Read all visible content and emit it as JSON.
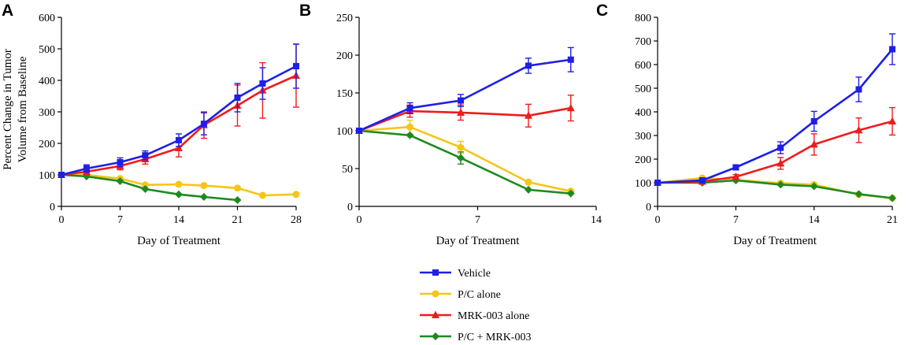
{
  "colors": {
    "vehicle": "#1f1fe6",
    "pc_alone": "#f5c518",
    "mrk_alone": "#ee1c1c",
    "pc_mrk": "#1e8a1e"
  },
  "legend": {
    "items": [
      {
        "key": "vehicle",
        "label": "Vehicle",
        "marker": "square"
      },
      {
        "key": "pc_alone",
        "label": "P/C alone",
        "marker": "circle"
      },
      {
        "key": "mrk_alone",
        "label": "MRK-003 alone",
        "marker": "triangle"
      },
      {
        "key": "pc_mrk",
        "label": "P/C + MRK-003",
        "marker": "diamond"
      }
    ]
  },
  "chart_data": [
    {
      "type": "line",
      "panel": "A",
      "title": "",
      "xlabel": "Day of Treatment",
      "ylabel": "Percent Change in Tumor Volume from Baseline",
      "ylabel_lines": [
        "Percent Change in Tumor",
        "Volume from Baseline"
      ],
      "xlim": [
        0,
        28
      ],
      "ylim": [
        0,
        600
      ],
      "xticks": [
        0,
        7,
        14,
        21,
        28
      ],
      "yticks": [
        0,
        100,
        200,
        300,
        400,
        500,
        600
      ],
      "series": [
        {
          "key": "vehicle",
          "name": "Vehicle",
          "x": [
            0,
            3,
            7,
            10,
            14,
            17,
            21,
            24,
            28
          ],
          "y": [
            100,
            120,
            140,
            162,
            210,
            262,
            345,
            390,
            445
          ],
          "err": [
            0,
            12,
            14,
            14,
            20,
            35,
            45,
            50,
            70
          ]
        },
        {
          "key": "pc_alone",
          "name": "P/C alone",
          "x": [
            0,
            3,
            7,
            10,
            14,
            17,
            21,
            24,
            28
          ],
          "y": [
            100,
            100,
            88,
            68,
            70,
            66,
            58,
            35,
            38
          ],
          "err": [
            0,
            0,
            0,
            0,
            0,
            0,
            0,
            0,
            0
          ]
        },
        {
          "key": "mrk_alone",
          "name": "MRK-003 alone",
          "x": [
            0,
            3,
            7,
            10,
            14,
            17,
            21,
            24,
            28
          ],
          "y": [
            100,
            110,
            128,
            150,
            185,
            258,
            320,
            368,
            415
          ],
          "err": [
            0,
            10,
            12,
            16,
            28,
            42,
            65,
            88,
            100
          ]
        },
        {
          "key": "pc_mrk",
          "name": "P/C + MRK-003",
          "x": [
            0,
            3,
            7,
            10,
            14,
            17,
            21
          ],
          "y": [
            100,
            95,
            80,
            55,
            38,
            30,
            20
          ],
          "err": [
            0,
            0,
            0,
            0,
            0,
            0,
            0
          ]
        }
      ]
    },
    {
      "type": "line",
      "panel": "B",
      "title": "",
      "xlabel": "Day of Treatment",
      "ylabel": "",
      "xlim": [
        0,
        14
      ],
      "ylim": [
        0,
        250
      ],
      "xticks": [
        0,
        7,
        14
      ],
      "yticks": [
        0,
        50,
        100,
        150,
        200,
        250
      ],
      "series": [
        {
          "key": "vehicle",
          "name": "Vehicle",
          "x": [
            0,
            3,
            6,
            10,
            12.5
          ],
          "y": [
            100,
            130,
            140,
            186,
            194
          ],
          "err": [
            0,
            7,
            8,
            10,
            16
          ]
        },
        {
          "key": "pc_alone",
          "name": "P/C alone",
          "x": [
            0,
            3,
            6,
            10,
            12.5
          ],
          "y": [
            100,
            105,
            78,
            32,
            20
          ],
          "err": [
            0,
            9,
            8,
            0,
            0
          ]
        },
        {
          "key": "mrk_alone",
          "name": "MRK-003 alone",
          "x": [
            0,
            3,
            6,
            10,
            12.5
          ],
          "y": [
            100,
            126,
            124,
            120,
            130
          ],
          "err": [
            0,
            8,
            10,
            15,
            17
          ]
        },
        {
          "key": "pc_mrk",
          "name": "P/C + MRK-003",
          "x": [
            0,
            3,
            6,
            10,
            12.5
          ],
          "y": [
            100,
            94,
            64,
            22,
            17
          ],
          "err": [
            0,
            0,
            8,
            0,
            0
          ]
        }
      ]
    },
    {
      "type": "line",
      "panel": "C",
      "title": "",
      "xlabel": "Day of Treatment",
      "ylabel": "",
      "xlim": [
        0,
        21
      ],
      "ylim": [
        0,
        800
      ],
      "xticks": [
        0,
        7,
        14,
        21
      ],
      "yticks": [
        0,
        100,
        200,
        300,
        400,
        500,
        600,
        700,
        800
      ],
      "series": [
        {
          "key": "vehicle",
          "name": "Vehicle",
          "x": [
            0,
            4,
            7,
            11,
            14,
            18,
            21
          ],
          "y": [
            100,
            110,
            165,
            248,
            360,
            495,
            665
          ],
          "err": [
            0,
            0,
            10,
            25,
            42,
            52,
            65
          ]
        },
        {
          "key": "pc_alone",
          "name": "P/C alone",
          "x": [
            0,
            4,
            7,
            11,
            14,
            18,
            21
          ],
          "y": [
            100,
            120,
            112,
            98,
            92,
            50,
            35
          ],
          "err": [
            0,
            0,
            0,
            0,
            0,
            0,
            0
          ]
        },
        {
          "key": "mrk_alone",
          "name": "MRK-003 alone",
          "x": [
            0,
            4,
            7,
            11,
            14,
            18,
            21
          ],
          "y": [
            100,
            105,
            125,
            182,
            262,
            322,
            360
          ],
          "err": [
            0,
            0,
            10,
            25,
            45,
            52,
            58
          ]
        },
        {
          "key": "pc_mrk",
          "name": "P/C + MRK-003",
          "x": [
            0,
            4,
            7,
            11,
            14,
            18,
            21
          ],
          "y": [
            100,
            100,
            110,
            92,
            85,
            52,
            35
          ],
          "err": [
            0,
            0,
            0,
            0,
            0,
            0,
            0
          ]
        }
      ]
    }
  ]
}
